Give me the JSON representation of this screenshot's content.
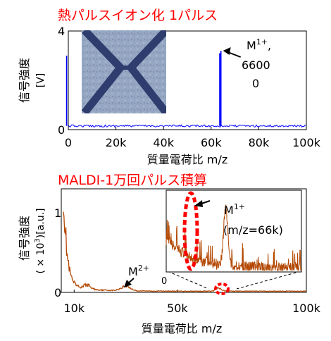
{
  "chart_data": [
    {
      "type": "line",
      "title": "熱パルスイオン化 1パルス",
      "title_color": "#ff0000",
      "series_color": "#0000ff",
      "xlabel": "質量電荷比 m/z",
      "ylabel": "信号強度",
      "yunit": "[V]",
      "xlim": [
        0,
        100000
      ],
      "ylim": [
        0,
        4
      ],
      "xticks": [
        {
          "value": 0,
          "label": "0"
        },
        {
          "value": 20000,
          "label": "20k"
        },
        {
          "value": 40000,
          "label": "40k"
        },
        {
          "value": 60000,
          "label": "60k"
        },
        {
          "value": 80000,
          "label": "80k"
        },
        {
          "value": 100000,
          "label": "100k"
        }
      ],
      "yticks": [
        {
          "value": 0,
          "label": "0"
        },
        {
          "value": 4,
          "label": "4"
        }
      ],
      "baseline": 0.15,
      "peaks": [
        {
          "x": -700,
          "y": 3.0
        },
        {
          "x": 63600,
          "y": 3.1
        },
        {
          "x": 64100,
          "y": 3.2
        }
      ],
      "annotation": {
        "label": "M",
        "superscript": "1+",
        "suffix": ",",
        "line2": "6600",
        "line3": "0",
        "x": 64100,
        "y": 3.2
      },
      "inset_photo": "microscope-x-electrode-photo"
    },
    {
      "type": "line",
      "title": "MALDI-1万回パルス積算",
      "title_color": "#ff0000",
      "series_color": "#b34700",
      "xlabel": "質量電荷比 m/z",
      "ylabel": "信号強度",
      "yunit_prefix": "( × 10",
      "yunit_sup": "3",
      "yunit_suffix": ")[a.u.]",
      "xlim": [
        5000,
        100000
      ],
      "ylim": [
        0,
        1.3
      ],
      "xticks": [
        {
          "value": 10000,
          "label": "10k"
        },
        {
          "value": 50000,
          "label": "50k"
        },
        {
          "value": 100000,
          "label": "100k"
        }
      ],
      "yticks": [
        {
          "value": 0,
          "label": "0"
        },
        {
          "value": 1,
          "label": "1"
        }
      ],
      "main_annotation": {
        "label": "M",
        "superscript": "2+",
        "x": 30000,
        "y": 0.08
      },
      "inset": {
        "xlim": [
          55000,
          80000
        ],
        "ylim": [
          0,
          1
        ],
        "yticks": [
          {
            "value": 0,
            "label": "0"
          }
        ],
        "peak": {
          "x": 66000,
          "y": 0.9
        },
        "annotation": {
          "label": "M",
          "superscript": "1+",
          "line2": "(m/z=66k)"
        },
        "highlight_color": "#ff0000"
      }
    }
  ]
}
